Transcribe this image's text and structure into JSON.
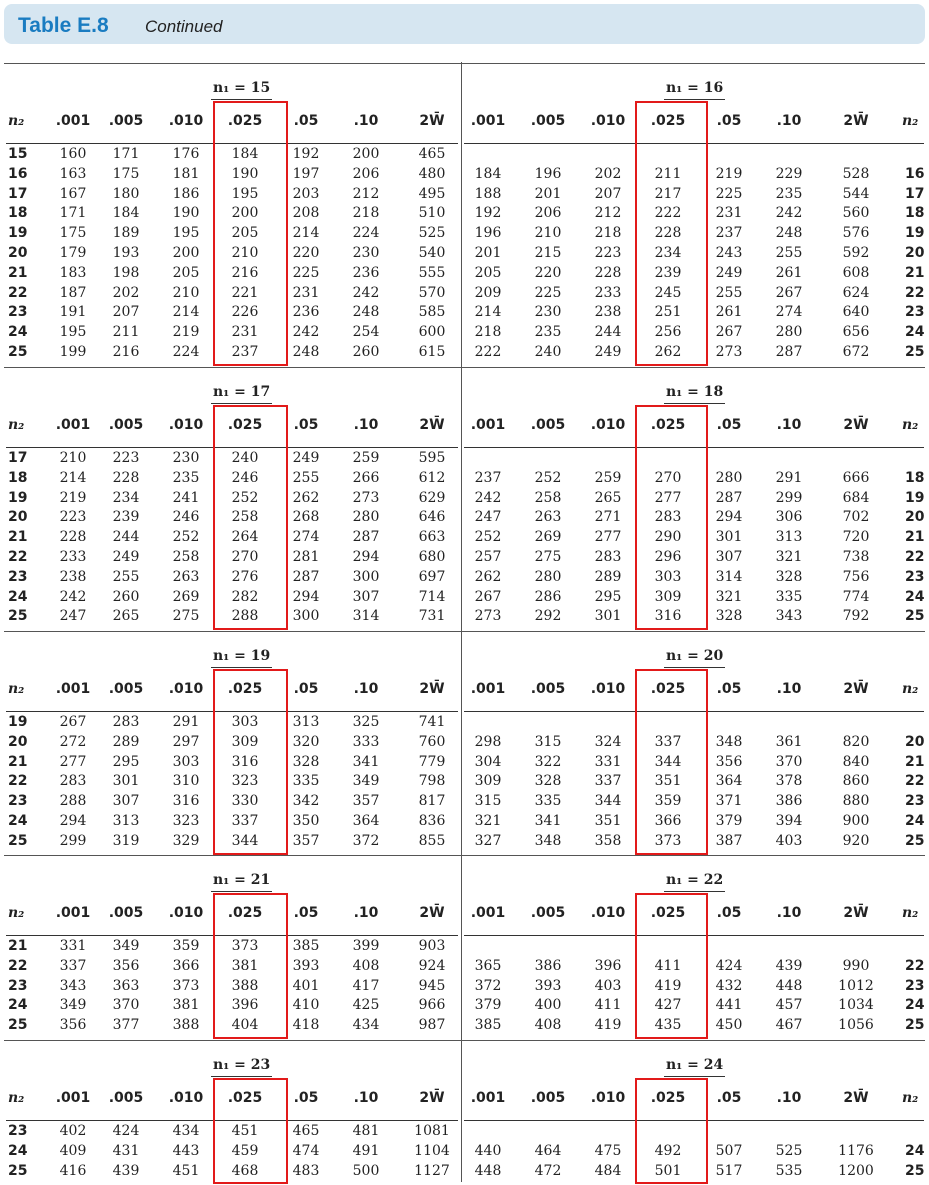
{
  "title": {
    "label": "Table E.8",
    "subtitle": "Continued"
  },
  "columns": [
    ".001",
    ".005",
    ".010",
    ".025",
    ".05",
    ".10",
    "2W̄"
  ],
  "n2_header": "n₂",
  "blocks": [
    {
      "left": {
        "heading": "n₁ = 15",
        "rows": [
          [
            "15",
            "160",
            "171",
            "176",
            "184",
            "192",
            "200",
            "465"
          ],
          [
            "16",
            "163",
            "175",
            "181",
            "190",
            "197",
            "206",
            "480"
          ],
          [
            "17",
            "167",
            "180",
            "186",
            "195",
            "203",
            "212",
            "495"
          ],
          [
            "18",
            "171",
            "184",
            "190",
            "200",
            "208",
            "218",
            "510"
          ],
          [
            "19",
            "175",
            "189",
            "195",
            "205",
            "214",
            "224",
            "525"
          ],
          [
            "20",
            "179",
            "193",
            "200",
            "210",
            "220",
            "230",
            "540"
          ],
          [
            "21",
            "183",
            "198",
            "205",
            "216",
            "225",
            "236",
            "555"
          ],
          [
            "22",
            "187",
            "202",
            "210",
            "221",
            "231",
            "242",
            "570"
          ],
          [
            "23",
            "191",
            "207",
            "214",
            "226",
            "236",
            "248",
            "585"
          ],
          [
            "24",
            "195",
            "211",
            "219",
            "231",
            "242",
            "254",
            "600"
          ],
          [
            "25",
            "199",
            "216",
            "224",
            "237",
            "248",
            "260",
            "615"
          ]
        ]
      },
      "right": {
        "heading": "n₁ = 16",
        "rows": [
          [
            "184",
            "196",
            "202",
            "211",
            "219",
            "229",
            "528",
            "16"
          ],
          [
            "188",
            "201",
            "207",
            "217",
            "225",
            "235",
            "544",
            "17"
          ],
          [
            "192",
            "206",
            "212",
            "222",
            "231",
            "242",
            "560",
            "18"
          ],
          [
            "196",
            "210",
            "218",
            "228",
            "237",
            "248",
            "576",
            "19"
          ],
          [
            "201",
            "215",
            "223",
            "234",
            "243",
            "255",
            "592",
            "20"
          ],
          [
            "205",
            "220",
            "228",
            "239",
            "249",
            "261",
            "608",
            "21"
          ],
          [
            "209",
            "225",
            "233",
            "245",
            "255",
            "267",
            "624",
            "22"
          ],
          [
            "214",
            "230",
            "238",
            "251",
            "261",
            "274",
            "640",
            "23"
          ],
          [
            "218",
            "235",
            "244",
            "256",
            "267",
            "280",
            "656",
            "24"
          ],
          [
            "222",
            "240",
            "249",
            "262",
            "273",
            "287",
            "672",
            "25"
          ]
        ]
      }
    },
    {
      "left": {
        "heading": "n₁ = 17",
        "rows": [
          [
            "17",
            "210",
            "223",
            "230",
            "240",
            "249",
            "259",
            "595"
          ],
          [
            "18",
            "214",
            "228",
            "235",
            "246",
            "255",
            "266",
            "612"
          ],
          [
            "19",
            "219",
            "234",
            "241",
            "252",
            "262",
            "273",
            "629"
          ],
          [
            "20",
            "223",
            "239",
            "246",
            "258",
            "268",
            "280",
            "646"
          ],
          [
            "21",
            "228",
            "244",
            "252",
            "264",
            "274",
            "287",
            "663"
          ],
          [
            "22",
            "233",
            "249",
            "258",
            "270",
            "281",
            "294",
            "680"
          ],
          [
            "23",
            "238",
            "255",
            "263",
            "276",
            "287",
            "300",
            "697"
          ],
          [
            "24",
            "242",
            "260",
            "269",
            "282",
            "294",
            "307",
            "714"
          ],
          [
            "25",
            "247",
            "265",
            "275",
            "288",
            "300",
            "314",
            "731"
          ]
        ]
      },
      "right": {
        "heading": "n₁ = 18",
        "rows": [
          [
            "237",
            "252",
            "259",
            "270",
            "280",
            "291",
            "666",
            "18"
          ],
          [
            "242",
            "258",
            "265",
            "277",
            "287",
            "299",
            "684",
            "19"
          ],
          [
            "247",
            "263",
            "271",
            "283",
            "294",
            "306",
            "702",
            "20"
          ],
          [
            "252",
            "269",
            "277",
            "290",
            "301",
            "313",
            "720",
            "21"
          ],
          [
            "257",
            "275",
            "283",
            "296",
            "307",
            "321",
            "738",
            "22"
          ],
          [
            "262",
            "280",
            "289",
            "303",
            "314",
            "328",
            "756",
            "23"
          ],
          [
            "267",
            "286",
            "295",
            "309",
            "321",
            "335",
            "774",
            "24"
          ],
          [
            "273",
            "292",
            "301",
            "316",
            "328",
            "343",
            "792",
            "25"
          ]
        ]
      }
    },
    {
      "left": {
        "heading": "n₁ = 19",
        "rows": [
          [
            "19",
            "267",
            "283",
            "291",
            "303",
            "313",
            "325",
            "741"
          ],
          [
            "20",
            "272",
            "289",
            "297",
            "309",
            "320",
            "333",
            "760"
          ],
          [
            "21",
            "277",
            "295",
            "303",
            "316",
            "328",
            "341",
            "779"
          ],
          [
            "22",
            "283",
            "301",
            "310",
            "323",
            "335",
            "349",
            "798"
          ],
          [
            "23",
            "288",
            "307",
            "316",
            "330",
            "342",
            "357",
            "817"
          ],
          [
            "24",
            "294",
            "313",
            "323",
            "337",
            "350",
            "364",
            "836"
          ],
          [
            "25",
            "299",
            "319",
            "329",
            "344",
            "357",
            "372",
            "855"
          ]
        ]
      },
      "right": {
        "heading": "n₁ = 20",
        "rows": [
          [
            "298",
            "315",
            "324",
            "337",
            "348",
            "361",
            "820",
            "20"
          ],
          [
            "304",
            "322",
            "331",
            "344",
            "356",
            "370",
            "840",
            "21"
          ],
          [
            "309",
            "328",
            "337",
            "351",
            "364",
            "378",
            "860",
            "22"
          ],
          [
            "315",
            "335",
            "344",
            "359",
            "371",
            "386",
            "880",
            "23"
          ],
          [
            "321",
            "341",
            "351",
            "366",
            "379",
            "394",
            "900",
            "24"
          ],
          [
            "327",
            "348",
            "358",
            "373",
            "387",
            "403",
            "920",
            "25"
          ]
        ]
      }
    },
    {
      "left": {
        "heading": "n₁ = 21",
        "rows": [
          [
            "21",
            "331",
            "349",
            "359",
            "373",
            "385",
            "399",
            "903"
          ],
          [
            "22",
            "337",
            "356",
            "366",
            "381",
            "393",
            "408",
            "924"
          ],
          [
            "23",
            "343",
            "363",
            "373",
            "388",
            "401",
            "417",
            "945"
          ],
          [
            "24",
            "349",
            "370",
            "381",
            "396",
            "410",
            "425",
            "966"
          ],
          [
            "25",
            "356",
            "377",
            "388",
            "404",
            "418",
            "434",
            "987"
          ]
        ]
      },
      "right": {
        "heading": "n₁ = 22",
        "rows": [
          [
            "365",
            "386",
            "396",
            "411",
            "424",
            "439",
            "990",
            "22"
          ],
          [
            "372",
            "393",
            "403",
            "419",
            "432",
            "448",
            "1012",
            "23"
          ],
          [
            "379",
            "400",
            "411",
            "427",
            "441",
            "457",
            "1034",
            "24"
          ],
          [
            "385",
            "408",
            "419",
            "435",
            "450",
            "467",
            "1056",
            "25"
          ]
        ]
      }
    },
    {
      "left": {
        "heading": "n₁ = 23",
        "rows": [
          [
            "23",
            "402",
            "424",
            "434",
            "451",
            "465",
            "481",
            "1081"
          ],
          [
            "24",
            "409",
            "431",
            "443",
            "459",
            "474",
            "491",
            "1104"
          ],
          [
            "25",
            "416",
            "439",
            "451",
            "468",
            "483",
            "500",
            "1127"
          ]
        ]
      },
      "right": {
        "heading": "n₁ = 24",
        "rows": [
          [
            "440",
            "464",
            "475",
            "492",
            "507",
            "525",
            "1176",
            "24"
          ],
          [
            "448",
            "472",
            "484",
            "501",
            "517",
            "535",
            "1200",
            "25"
          ]
        ]
      }
    }
  ],
  "colors": {
    "title_blue": "#1a7cc1",
    "title_bar": "#d6e6f1",
    "highlight_red": "#e21a1a"
  }
}
